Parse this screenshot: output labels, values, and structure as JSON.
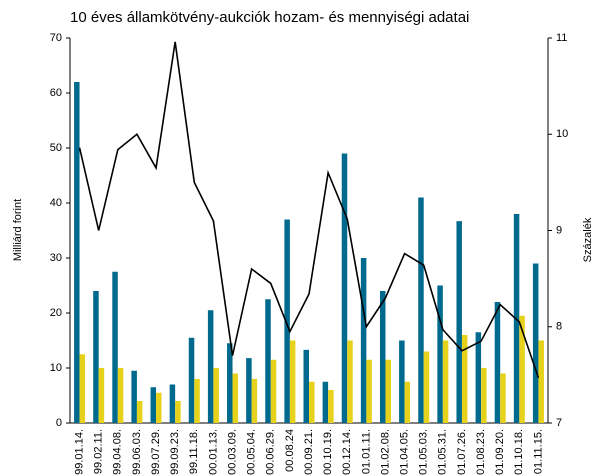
{
  "chart_data": {
    "type": "bar_line",
    "title": "10 éves államkötvény-aukciók hozam- és mennyiségi adatai",
    "ylabel": "Milliárd forint",
    "y2label": "Százalék",
    "categories": [
      "99.01.14.",
      "99.02.11.",
      "99.04.08.",
      "99.06.03.",
      "99.07.29.",
      "99.09.23.",
      "99.11.18.",
      "00.01.13.",
      "00.03.09.",
      "00.05.04.",
      "00.06.29.",
      "00.08.24",
      "00.09.21.",
      "00.10.19.",
      "00.12.14.",
      "01.01.11.",
      "01.02.08.",
      "01.04.05.",
      "01.05.03.",
      "01.05.31.",
      "01.07.26.",
      "01.08.23.",
      "01.09.20.",
      "01.10.18.",
      "01.11.15."
    ],
    "series": [
      {
        "type": "bar",
        "color": "#006a8e",
        "values": [
          62,
          24,
          27.5,
          9.5,
          6.5,
          7,
          15.5,
          20.5,
          14.5,
          11.8,
          22.5,
          37,
          13.3,
          7.5,
          49,
          30,
          24,
          15,
          41,
          25,
          36.7,
          16.5,
          22,
          38,
          29
        ]
      },
      {
        "type": "bar",
        "color": "#e6d21a",
        "values": [
          12.5,
          10,
          10,
          4,
          5.5,
          4,
          8,
          10,
          9,
          8,
          11.5,
          15,
          7.5,
          6,
          15,
          11.5,
          11.5,
          7.5,
          13,
          15,
          16,
          10,
          9,
          19.5,
          15
        ]
      },
      {
        "type": "line",
        "axis": "y2",
        "color": "#000000",
        "values": [
          9.86,
          9.0,
          9.84,
          10.0,
          9.65,
          10.96,
          9.5,
          9.1,
          7.7,
          8.6,
          8.45,
          7.95,
          8.34,
          9.6,
          9.12,
          8.0,
          8.3,
          8.76,
          8.64,
          7.97,
          7.75,
          7.85,
          8.23,
          8.05,
          7.47
        ]
      }
    ],
    "ylim": [
      0,
      70
    ],
    "yticks": [
      0,
      10,
      20,
      30,
      40,
      50,
      60,
      70
    ],
    "y2lim": [
      7,
      11
    ],
    "y2ticks": [
      7,
      8,
      9,
      10,
      11
    ],
    "grid": false
  }
}
